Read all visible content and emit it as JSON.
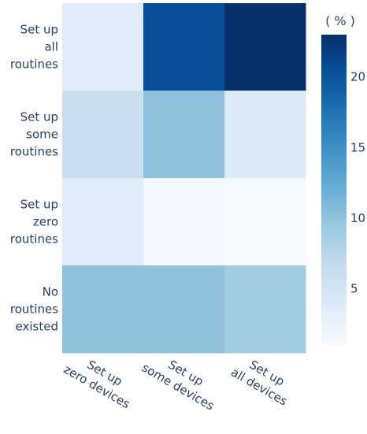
{
  "chart_data": {
    "type": "heatmap",
    "title": "",
    "xlabel": "",
    "ylabel": "",
    "x_categories": [
      [
        "Set up",
        "zero devices"
      ],
      [
        "Set up",
        "some devices"
      ],
      [
        "Set up",
        "all devices"
      ]
    ],
    "y_categories": [
      [
        "Set up",
        "all",
        "routines"
      ],
      [
        "Set up",
        "some",
        "routines"
      ],
      [
        "Set up",
        "zero",
        "routines"
      ],
      [
        "No",
        "routines",
        "existed"
      ]
    ],
    "z": [
      [
        3.5,
        20.5,
        23.0
      ],
      [
        6.0,
        10.0,
        4.0
      ],
      [
        3.5,
        1.5,
        1.2
      ],
      [
        10.0,
        10.0,
        9.0
      ]
    ],
    "colorscale": "Blues",
    "colorbar": {
      "title": "( % )",
      "range": [
        1,
        23
      ],
      "ticks": [
        5,
        10,
        15,
        20
      ]
    }
  }
}
